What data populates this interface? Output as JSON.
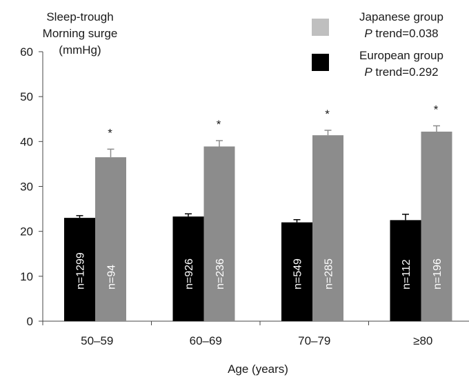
{
  "chart_data": {
    "type": "bar",
    "ylabel_lines": [
      "Sleep-trough",
      "Morning surge",
      "(mmHg)"
    ],
    "xlabel": "Age (years)",
    "categories": [
      "50–59",
      "60–69",
      "70–79",
      "≥80"
    ],
    "ylim": [
      0,
      60
    ],
    "yticks": [
      0,
      10,
      20,
      30,
      40,
      50,
      60
    ],
    "grid": false,
    "legend_position": "top-right",
    "series": [
      {
        "name": "European group",
        "trend_prefix": "P",
        "trend_text": " trend=0.292",
        "color": "#000000",
        "values": [
          23.0,
          23.3,
          22.0,
          22.5
        ],
        "errors": [
          0.5,
          0.6,
          0.6,
          1.3
        ],
        "n_labels": [
          "n=1299",
          "n=926",
          "n=549",
          "n=112"
        ]
      },
      {
        "name": "Japanese group",
        "trend_prefix": "P",
        "trend_text": " trend=0.038",
        "color": "#8c8c8c",
        "legend_color": "#bfbfbf",
        "values": [
          36.5,
          38.9,
          41.4,
          42.2
        ],
        "errors": [
          1.8,
          1.3,
          1.1,
          1.3
        ],
        "n_labels": [
          "n=94",
          "n=236",
          "n=285",
          "n=196"
        ]
      }
    ],
    "significance_markers": [
      "*",
      "*",
      "*",
      "*"
    ]
  }
}
